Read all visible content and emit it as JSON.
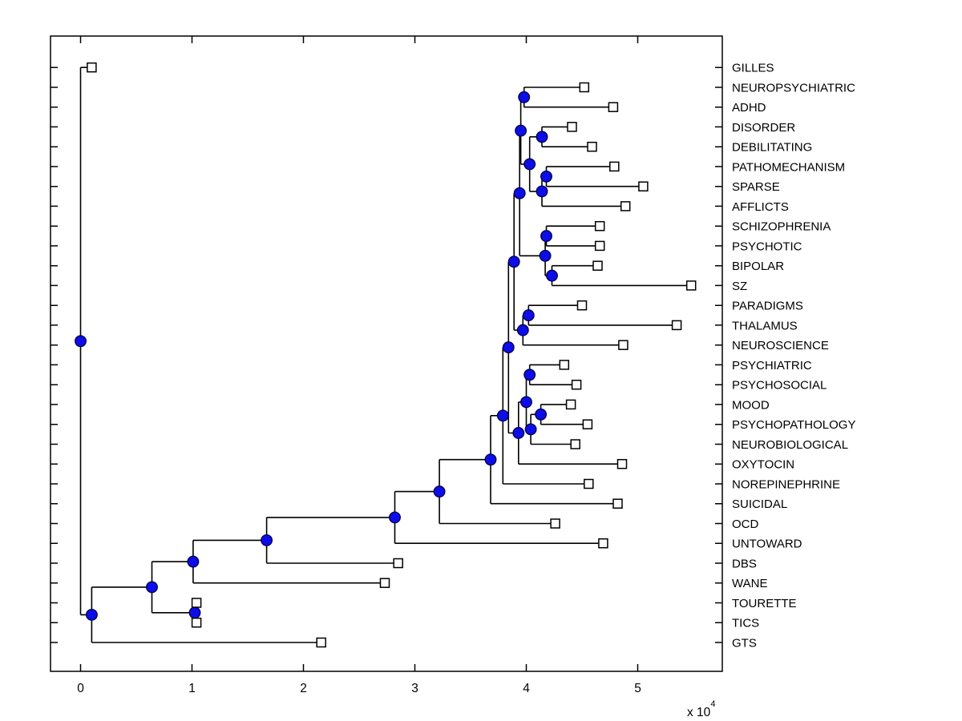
{
  "figure": {
    "background": "#ffffff",
    "title": ""
  },
  "chart_data": {
    "type": "dendrogram",
    "orientation": "left-to-right",
    "description": "Hierarchical cluster tree (phylogram style) with open-square leaf markers and filled blue circle internal-node markers",
    "colors": {
      "branch": "#000000",
      "axes": "#000000",
      "leaf_fill": "#ffffff",
      "leaf_stroke": "#000000",
      "node_fill": "#0d0de8",
      "node_stroke": "#00004a",
      "text": "#000000"
    },
    "markers": {
      "leaf": "open-square",
      "internal": "filled-circle"
    },
    "x_axis": {
      "tick_labels": [
        "0",
        "1",
        "2",
        "3",
        "4",
        "5"
      ],
      "tick_values": [
        0,
        1,
        2,
        3,
        4,
        5
      ],
      "range": [
        -0.27,
        5.76
      ],
      "multiplier_text": "x 10",
      "multiplier_exponent": "4",
      "unit_note": "branch distance in units of 10^4"
    },
    "y_axis": {
      "rows": 30,
      "grid": false
    },
    "legend": null,
    "leaves": [
      {
        "label": "GILLES",
        "x": 0.1
      },
      {
        "label": "NEUROPSYCHIATRIC",
        "x": 4.52
      },
      {
        "label": "ADHD",
        "x": 4.78
      },
      {
        "label": "DISORDER",
        "x": 4.41
      },
      {
        "label": "DEBILITATING",
        "x": 4.59
      },
      {
        "label": "PATHOMECHANISM",
        "x": 4.79
      },
      {
        "label": "SPARSE",
        "x": 5.05
      },
      {
        "label": "AFFLICTS",
        "x": 4.89
      },
      {
        "label": "SCHIZOPHRENIA",
        "x": 4.66
      },
      {
        "label": "PSYCHOTIC",
        "x": 4.66
      },
      {
        "label": "BIPOLAR",
        "x": 4.64
      },
      {
        "label": "SZ",
        "x": 5.48
      },
      {
        "label": "PARADIGMS",
        "x": 4.5
      },
      {
        "label": "THALAMUS",
        "x": 5.35
      },
      {
        "label": "NEUROSCIENCE",
        "x": 4.87
      },
      {
        "label": "PSYCHIATRIC",
        "x": 4.34
      },
      {
        "label": "PSYCHOSOCIAL",
        "x": 4.45
      },
      {
        "label": "MOOD",
        "x": 4.4
      },
      {
        "label": "PSYCHOPATHOLOGY",
        "x": 4.55
      },
      {
        "label": "NEUROBIOLOGICAL",
        "x": 4.44
      },
      {
        "label": "OXYTOCIN",
        "x": 4.86
      },
      {
        "label": "NOREPINEPHRINE",
        "x": 4.56
      },
      {
        "label": "SUICIDAL",
        "x": 4.82
      },
      {
        "label": "OCD",
        "x": 4.26
      },
      {
        "label": "UNTOWARD",
        "x": 4.69
      },
      {
        "label": "DBS",
        "x": 2.85
      },
      {
        "label": "WANE",
        "x": 2.73
      },
      {
        "label": "TOURETTE",
        "x": 1.04
      },
      {
        "label": "TICS",
        "x": 1.04
      },
      {
        "label": "GTS",
        "x": 2.16
      }
    ],
    "internal_nodes": [
      {
        "id": "clade-neuropsychiatric-adhd",
        "x": 3.98,
        "children": [
          "NEUROPSYCHIATRIC",
          "ADHD"
        ]
      },
      {
        "id": "clade-disorder-debilitating",
        "x": 4.14,
        "children": [
          "DISORDER",
          "DEBILITATING"
        ]
      },
      {
        "id": "clade-pathomechanism-sparse",
        "x": 4.18,
        "children": [
          "PATHOMECHANISM",
          "SPARSE"
        ]
      },
      {
        "id": "clade-afflicts",
        "x": 4.14,
        "children": [
          "clade-pathomechanism-sparse",
          "AFFLICTS"
        ]
      },
      {
        "id": "clade-disorder-group",
        "x": 4.03,
        "children": [
          "clade-disorder-debilitating",
          "clade-afflicts"
        ]
      },
      {
        "id": "clade-adhd-group",
        "x": 3.95,
        "children": [
          "clade-neuropsychiatric-adhd",
          "clade-disorder-group"
        ]
      },
      {
        "id": "clade-schizophrenia-psychotic",
        "x": 4.18,
        "children": [
          "SCHIZOPHRENIA",
          "PSYCHOTIC"
        ]
      },
      {
        "id": "clade-bipolar-sz",
        "x": 4.23,
        "children": [
          "BIPOLAR",
          "SZ"
        ]
      },
      {
        "id": "clade-psychosis-group",
        "x": 4.17,
        "children": [
          "clade-schizophrenia-psychotic",
          "clade-bipolar-sz"
        ]
      },
      {
        "id": "clade-top-group",
        "x": 3.94,
        "children": [
          "clade-adhd-group",
          "clade-psychosis-group"
        ]
      },
      {
        "id": "clade-paradigms-thalamus",
        "x": 4.02,
        "children": [
          "PARADIGMS",
          "THALAMUS"
        ]
      },
      {
        "id": "clade-neuroscience",
        "x": 3.97,
        "children": [
          "clade-paradigms-thalamus",
          "NEUROSCIENCE"
        ]
      },
      {
        "id": "clade-upper-half",
        "x": 3.89,
        "children": [
          "clade-top-group",
          "clade-neuroscience"
        ]
      },
      {
        "id": "clade-psychiatric-psychosocial",
        "x": 4.03,
        "children": [
          "PSYCHIATRIC",
          "PSYCHOSOCIAL"
        ]
      },
      {
        "id": "clade-mood-psychopathology",
        "x": 4.13,
        "children": [
          "MOOD",
          "PSYCHOPATHOLOGY"
        ]
      },
      {
        "id": "clade-neurobiological",
        "x": 4.04,
        "children": [
          "clade-mood-psychopathology",
          "NEUROBIOLOGICAL"
        ]
      },
      {
        "id": "clade-psychiatric-group",
        "x": 4.0,
        "children": [
          "clade-psychiatric-psychosocial",
          "clade-neurobiological"
        ]
      },
      {
        "id": "clade-oxytocin",
        "x": 3.93,
        "children": [
          "clade-psychiatric-group",
          "OXYTOCIN"
        ]
      },
      {
        "id": "clade-mid-join",
        "x": 3.84,
        "children": [
          "clade-upper-half",
          "clade-oxytocin"
        ]
      },
      {
        "id": "clade-norepinephrine",
        "x": 3.79,
        "children": [
          "clade-mid-join",
          "NOREPINEPHRINE"
        ]
      },
      {
        "id": "clade-suicidal",
        "x": 3.68,
        "children": [
          "clade-norepinephrine",
          "SUICIDAL"
        ]
      },
      {
        "id": "clade-ocd",
        "x": 3.22,
        "children": [
          "clade-suicidal",
          "OCD"
        ]
      },
      {
        "id": "clade-untoward",
        "x": 2.82,
        "children": [
          "clade-ocd",
          "UNTOWARD"
        ]
      },
      {
        "id": "clade-dbs",
        "x": 1.67,
        "children": [
          "clade-untoward",
          "DBS"
        ]
      },
      {
        "id": "clade-wane",
        "x": 1.01,
        "children": [
          "clade-dbs",
          "WANE"
        ]
      },
      {
        "id": "clade-tourette-tics",
        "x": 1.025,
        "children": [
          "TOURETTE",
          "TICS"
        ]
      },
      {
        "id": "clade-lower-join",
        "x": 0.64,
        "children": [
          "clade-wane",
          "clade-tourette-tics"
        ]
      },
      {
        "id": "clade-gts",
        "x": 0.1,
        "children": [
          "clade-lower-join",
          "GTS"
        ]
      },
      {
        "id": "root",
        "x": 0.0,
        "children": [
          "GILLES",
          "clade-gts"
        ]
      }
    ]
  }
}
